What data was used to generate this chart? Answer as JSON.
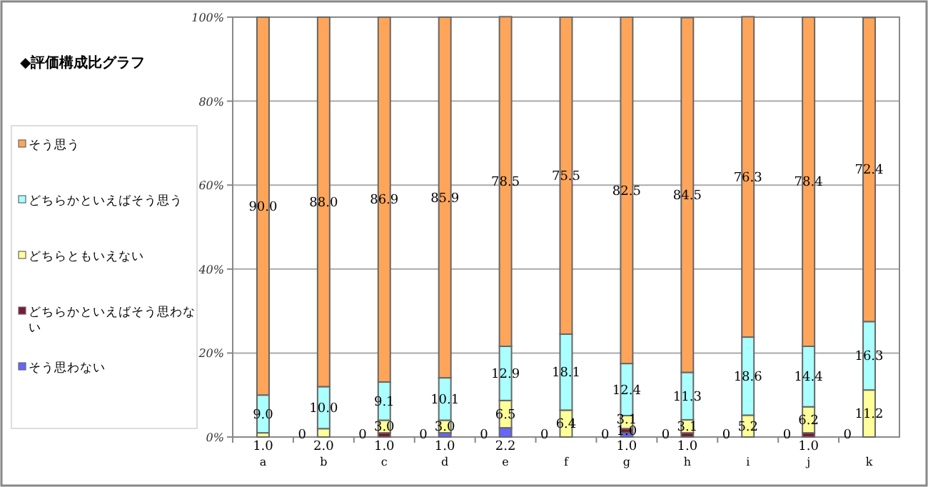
{
  "chart_data": {
    "type": "bar",
    "stacked": true,
    "title": "◆評価構成比グラフ",
    "categories": [
      "a",
      "b",
      "c",
      "d",
      "e",
      "f",
      "g",
      "h",
      "i",
      "j",
      "k"
    ],
    "series": [
      {
        "name": "そう思わない",
        "color": "#6666ff",
        "values": [
          0,
          0,
          0,
          1.0,
          2.2,
          0,
          1.0,
          0,
          0,
          0,
          0
        ],
        "value_labels": [
          null,
          null,
          null,
          "1.0",
          "2.2",
          null,
          "1.0",
          null,
          null,
          null,
          null
        ]
      },
      {
        "name": "どちらかといえばそう思わない",
        "color": "#7a1a3a",
        "values": [
          0,
          0,
          1.0,
          0,
          0,
          0,
          1.0,
          1.0,
          0,
          1.0,
          0
        ],
        "value_labels": [
          null,
          null,
          "1.0",
          null,
          null,
          null,
          "1.0",
          "1.0",
          null,
          "1.0",
          null
        ]
      },
      {
        "name": "どちらともいえない",
        "color": "#ffff99",
        "values": [
          1.0,
          2.0,
          3.0,
          3.0,
          6.5,
          6.4,
          3.1,
          3.1,
          5.2,
          6.2,
          11.2
        ],
        "value_labels": [
          "1.0",
          "2.0",
          "3.0",
          "3.0",
          "6.5",
          "6.4",
          "3.1",
          "3.1",
          "5.2",
          "6.2",
          "11.2"
        ]
      },
      {
        "name": "どちらかといえばそう思う",
        "color": "#aaffff",
        "values": [
          9.0,
          10.0,
          9.1,
          10.1,
          12.9,
          18.1,
          12.4,
          11.3,
          18.6,
          14.4,
          16.3
        ],
        "value_labels": [
          "9.0",
          "10.0",
          "9.1",
          "10.1",
          "12.9",
          "18.1",
          "12.4",
          "11.3",
          "18.6",
          "14.4",
          "16.3"
        ]
      },
      {
        "name": "そう思う",
        "color": "#ffa55a",
        "values": [
          90.0,
          88.0,
          86.9,
          85.9,
          78.5,
          75.5,
          82.5,
          84.5,
          76.3,
          78.4,
          72.4
        ],
        "value_labels": [
          "90.0",
          "88.0",
          "86.9",
          "85.9",
          "78.5",
          "75.5",
          "82.5",
          "84.5",
          "76.3",
          "78.4",
          "72.4"
        ]
      }
    ],
    "ylim": [
      0,
      100
    ],
    "yticks": [
      {
        "value": 0,
        "label": "0%"
      },
      {
        "value": 20,
        "label": "20%"
      },
      {
        "value": 40,
        "label": "40%"
      },
      {
        "value": 60,
        "label": "60%"
      },
      {
        "value": 80,
        "label": "80%"
      },
      {
        "value": 100,
        "label": "100%"
      }
    ],
    "annotations": [
      {
        "text": "0",
        "x": "b",
        "y": 0
      },
      {
        "text": "0",
        "x": "c",
        "y": 0
      },
      {
        "text": "0",
        "x": "d",
        "y": 0
      },
      {
        "text": "0",
        "x": "e",
        "y": 0
      },
      {
        "text": "0",
        "x": "f",
        "y": 0
      },
      {
        "text": "0",
        "x": "g",
        "y": 0
      },
      {
        "text": "0",
        "x": "h",
        "y": 0
      },
      {
        "text": "0",
        "x": "i",
        "y": 0
      },
      {
        "text": "0",
        "x": "j",
        "y": 0
      },
      {
        "text": "0",
        "x": "k",
        "y": 0
      }
    ],
    "grid": "y",
    "legend": "left"
  }
}
